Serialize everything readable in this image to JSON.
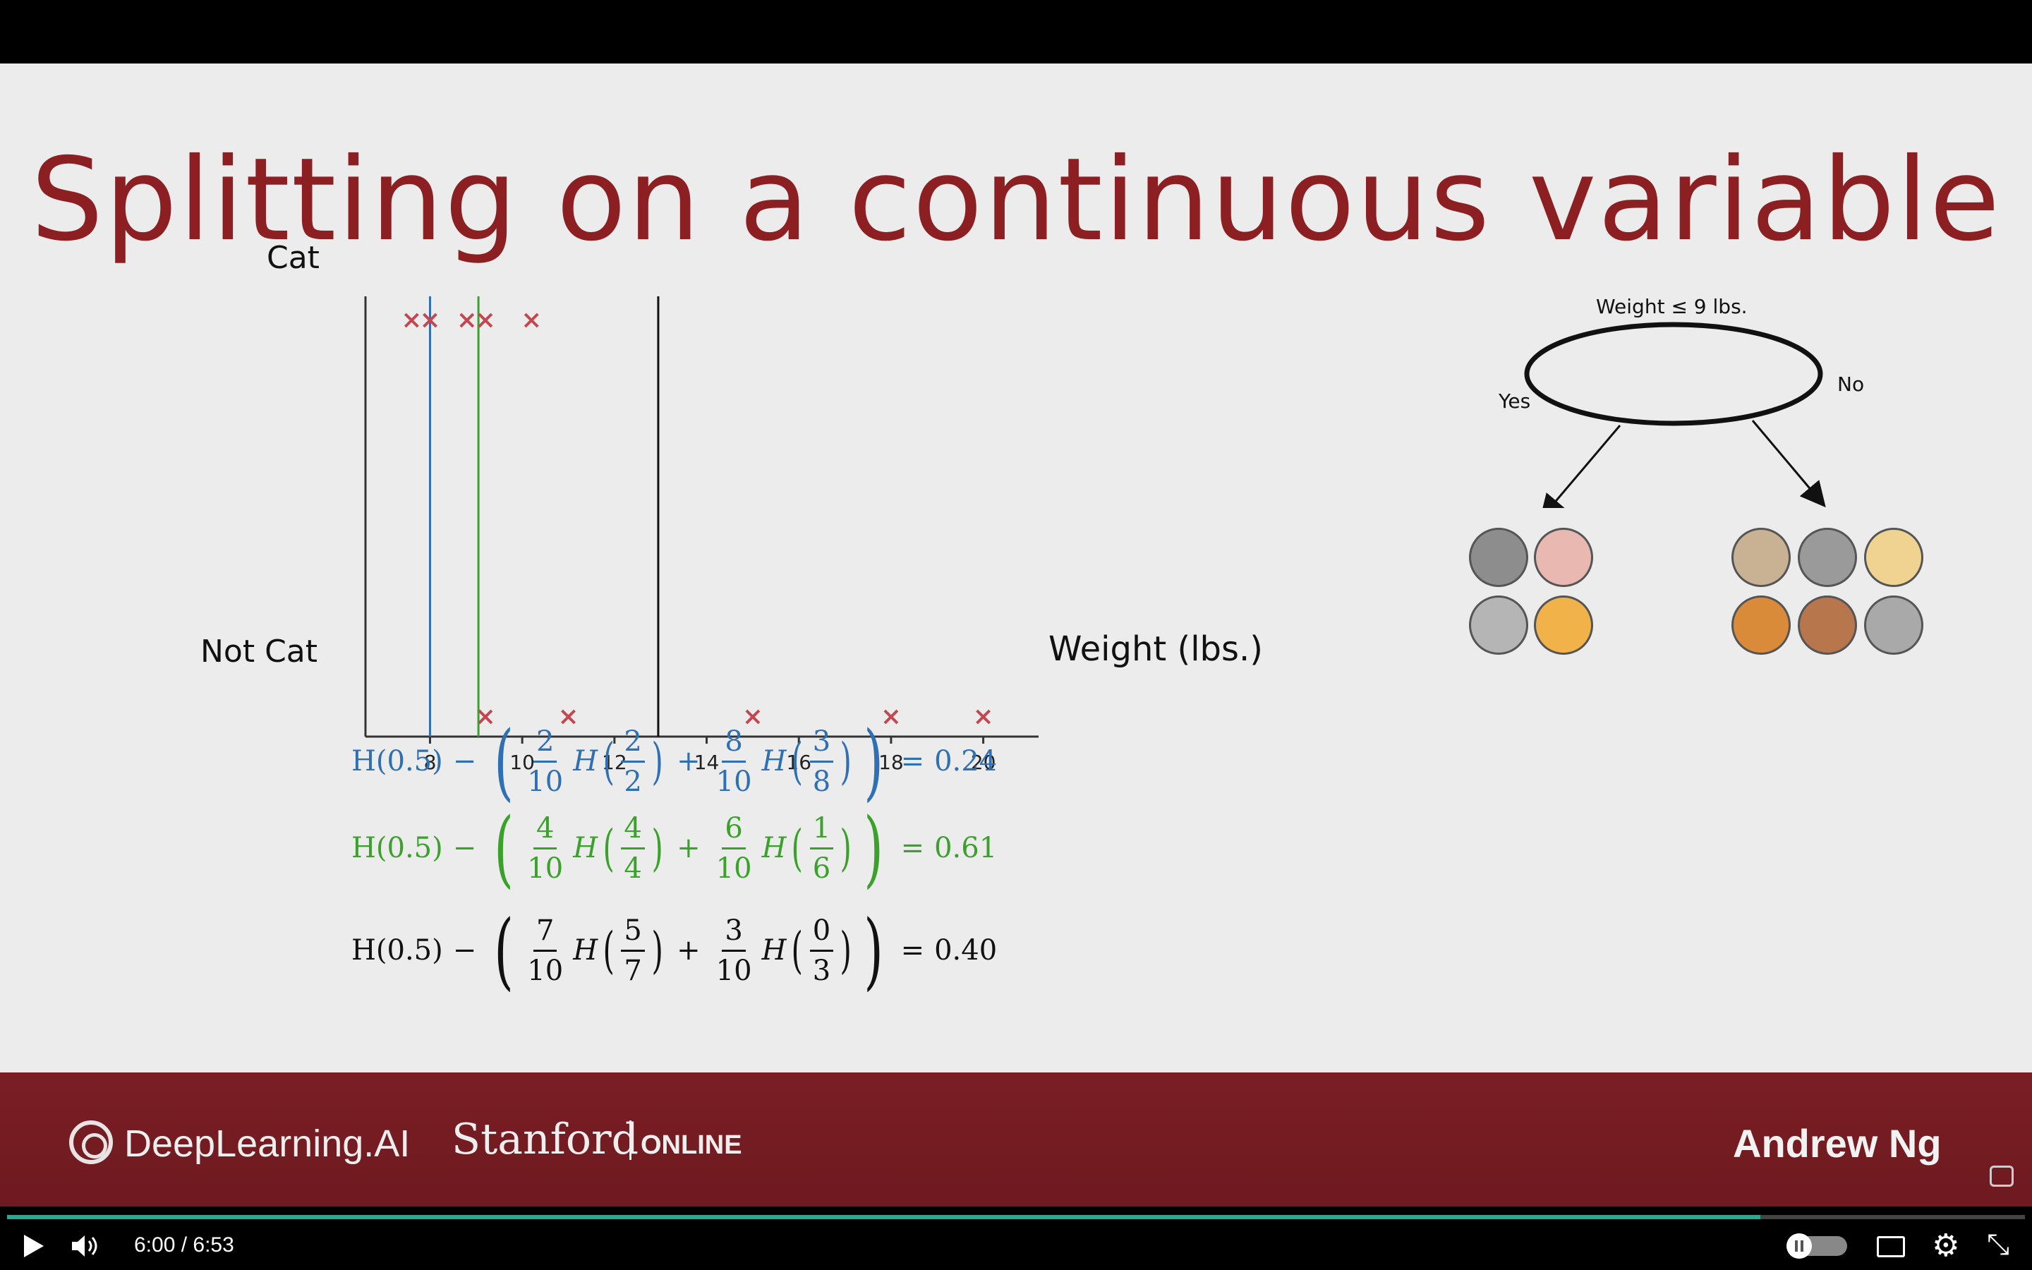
{
  "slide": {
    "title": "Splitting on a continuous variable",
    "y_label_top": "Cat",
    "y_label_bottom": "Not Cat",
    "x_label": "Weight (lbs.)"
  },
  "chart_data": {
    "type": "scatter",
    "xlabel": "Weight (lbs.)",
    "ylabel": "",
    "x_ticks": [
      "8",
      "10",
      "12",
      "14",
      "16",
      "18",
      "20"
    ],
    "xlim": [
      6.6,
      21.2
    ],
    "categories": [
      "Not Cat",
      "Cat"
    ],
    "series": [
      {
        "name": "Cat",
        "x": [
          7.6,
          8.0,
          8.8,
          9.2,
          10.2
        ],
        "y": [
          1,
          1,
          1,
          1,
          1
        ]
      },
      {
        "name": "Not Cat",
        "x": [
          9.2,
          11.0,
          15.0,
          18.0,
          20.0
        ],
        "y": [
          0,
          0,
          0,
          0,
          0
        ]
      }
    ],
    "split_lines": [
      {
        "x": 8.0,
        "color": "#2f6fb4"
      },
      {
        "x": 9.05,
        "color": "#3aa12a"
      },
      {
        "x": 12.95,
        "color": "#111111"
      }
    ],
    "marker_color": "#c2474f"
  },
  "formulas": {
    "prefix": "H(0.5)",
    "minus": "−",
    "plus": "+",
    "equals": "=",
    "H": "H",
    "blue": {
      "a_num": "2",
      "a_den": "10",
      "b_num": "2",
      "b_den": "2",
      "c_num": "8",
      "c_den": "10",
      "d_num": "3",
      "d_den": "8",
      "result": "0.24"
    },
    "green": {
      "a_num": "4",
      "a_den": "10",
      "b_num": "4",
      "b_den": "4",
      "c_num": "6",
      "c_den": "10",
      "d_num": "1",
      "d_den": "6",
      "result": "0.61"
    },
    "black": {
      "a_num": "7",
      "a_den": "10",
      "b_num": "5",
      "b_den": "7",
      "c_num": "3",
      "c_den": "10",
      "d_num": "0",
      "d_den": "3",
      "result": "0.40"
    }
  },
  "tree": {
    "node_label": "Weight ≤ 9 lbs.",
    "yes_label": "Yes",
    "no_label": "No",
    "left_animals": [
      "grey-cat-icon",
      "pink-cat-icon",
      "white-cat-icon",
      "orange-cat-icon"
    ],
    "right_animals": [
      "pug-dog-icon",
      "grey-cat-icon",
      "yellow-dog-icon",
      "orange-cat-icon",
      "brown-dog-icon",
      "grey-dog-icon"
    ],
    "left_colors": [
      "#8d8d8d",
      "#e9b8b0",
      "#b5b5b5",
      "#f2b24a"
    ],
    "right_colors": [
      "#c9b194",
      "#9a9a9a",
      "#f1d391",
      "#d98b3a",
      "#b7764c",
      "#a9a9a9"
    ]
  },
  "banner": {
    "dl_brand": "DeepLearning.AI",
    "stanford": "Stanford",
    "online": "ONLINE",
    "instructor": "Andrew Ng"
  },
  "player": {
    "time": "6:00  /  6:53",
    "progress": 0.869,
    "settings_icon": "gear-icon",
    "fullscreen_icon": "collapse-icon"
  }
}
